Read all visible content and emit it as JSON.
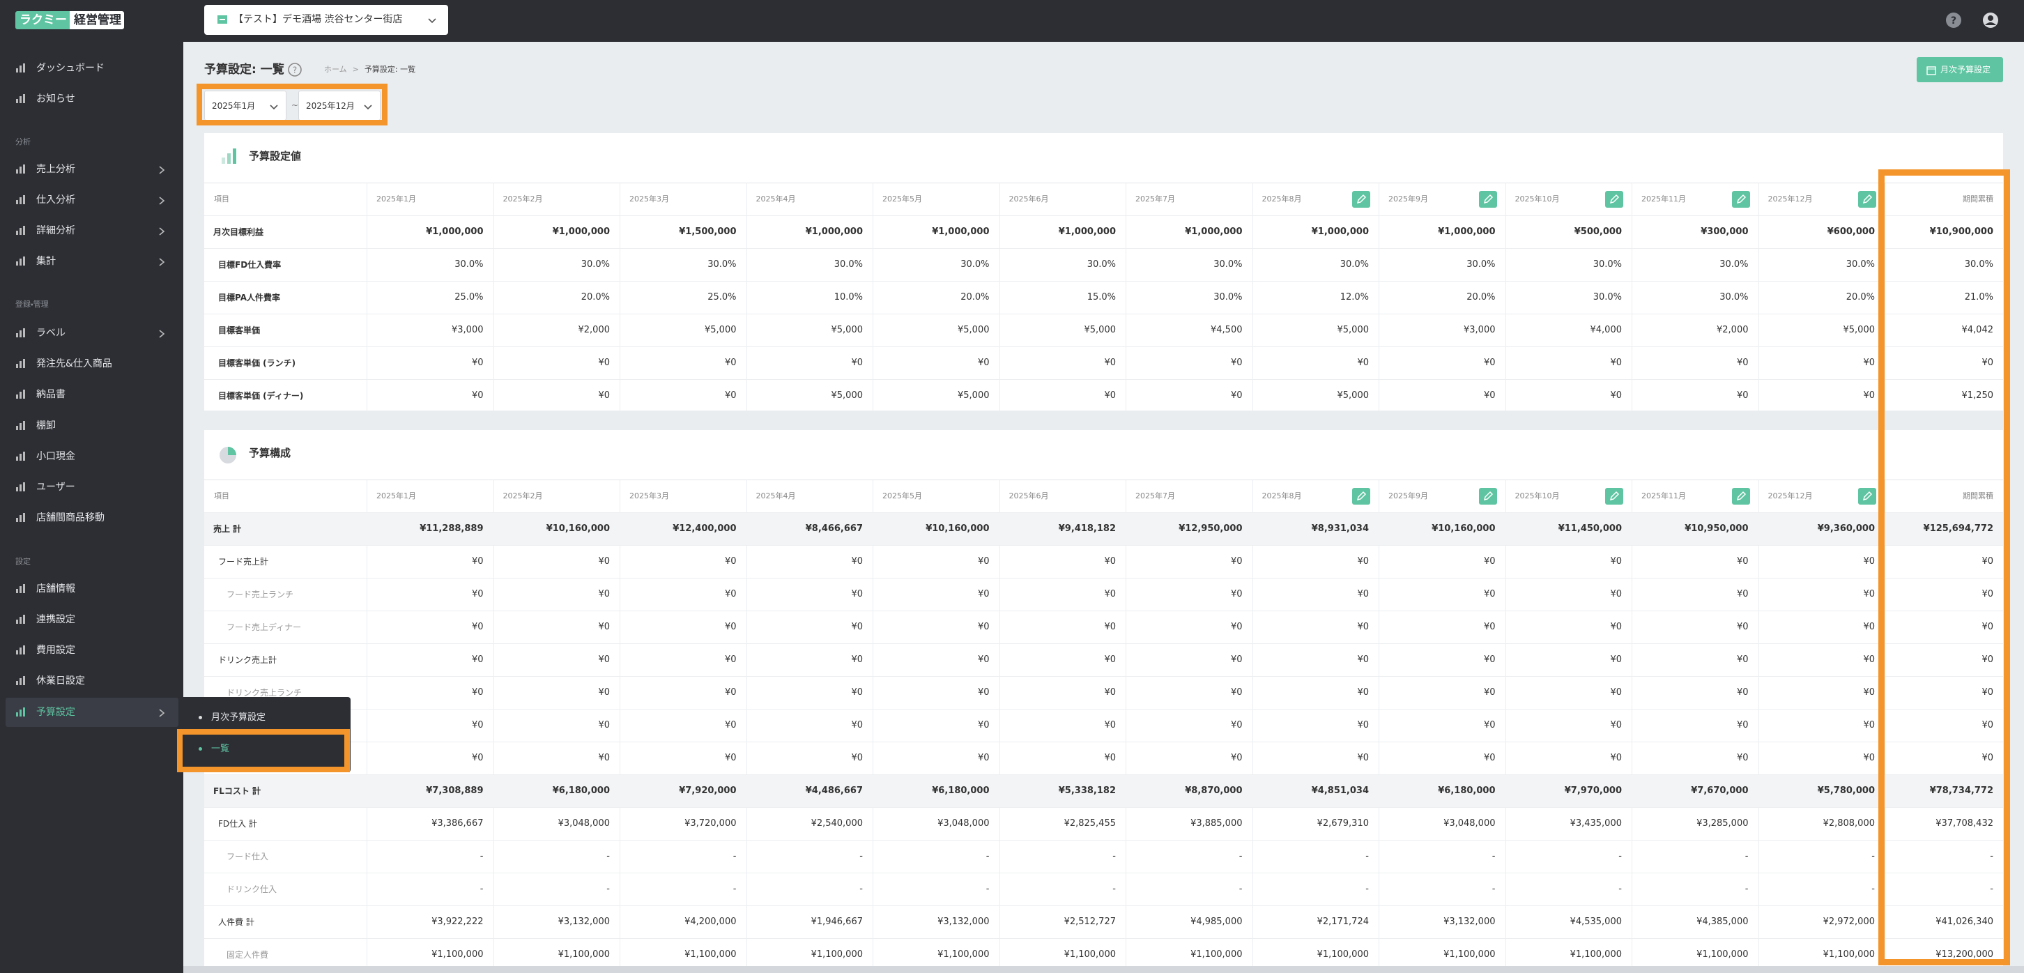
{
  "header": {
    "logo": "ラクミー",
    "app_name": "経営管理",
    "store": "【テスト】デモ酒場 渋谷センター街店"
  },
  "sidebar": {
    "groups": [
      {
        "items": [
          "ダッシュボード",
          "お知らせ"
        ]
      },
      {
        "heading": "分析",
        "items": [
          "売上分析",
          "仕入分析",
          "詳細分析",
          "集計"
        ]
      },
      {
        "heading": "登録・管理",
        "items": [
          "ラベル",
          "発注先&仕入商品",
          "納品書",
          "棚卸",
          "小口現金",
          "ユーザー",
          "店舗間商品移動"
        ]
      },
      {
        "heading": "設定",
        "items": [
          "店舗情報",
          "連携設定",
          "費用設定",
          "休業日設定",
          "予算設定"
        ]
      }
    ]
  },
  "submenu": [
    "月次予算設定",
    "一覧"
  ],
  "page": {
    "title": "予算設定: 一覧",
    "breadcrumb": [
      "ホーム",
      ">",
      "予算設定: 一覧"
    ],
    "button": "月次予算設定",
    "range": {
      "from": "2025年1月",
      "separator": "~",
      "to": "2025年12月"
    }
  },
  "tables": [
    {
      "title": "予算設定値",
      "columns": [
        "項目",
        "2025年1月",
        "2025年2月",
        "2025年3月",
        "2025年4月",
        "2025年5月",
        "2025年6月",
        "2025年7月",
        "2025年8月",
        "2025年9月",
        "2025年10月",
        "2025年11月",
        "2025年12月",
        "期間累積"
      ],
      "rows": [
        {
          "label": "月次目標利益",
          "values": [
            "¥1,000,000",
            "¥1,000,000",
            "¥1,500,000",
            "¥1,000,000",
            "¥1,000,000",
            "¥1,000,000",
            "¥1,000,000",
            "¥1,000,000",
            "¥1,000,000",
            "¥500,000",
            "¥300,000",
            "¥600,000",
            "¥10,900,000"
          ]
        },
        {
          "label": "目標FD仕入費率",
          "values": [
            "30.0%",
            "30.0%",
            "30.0%",
            "30.0%",
            "30.0%",
            "30.0%",
            "30.0%",
            "30.0%",
            "30.0%",
            "30.0%",
            "30.0%",
            "30.0%",
            "30.0%"
          ]
        },
        {
          "label": "目標PA人件費率",
          "values": [
            "25.0%",
            "20.0%",
            "25.0%",
            "10.0%",
            "20.0%",
            "15.0%",
            "30.0%",
            "12.0%",
            "20.0%",
            "30.0%",
            "30.0%",
            "20.0%",
            "21.0%"
          ]
        },
        {
          "label": "目標客単価",
          "values": [
            "¥3,000",
            "¥2,000",
            "¥5,000",
            "¥5,000",
            "¥5,000",
            "¥5,000",
            "¥4,500",
            "¥5,000",
            "¥3,000",
            "¥4,000",
            "¥2,000",
            "¥5,000",
            "¥4,042"
          ]
        },
        {
          "label": "目標客単価 (ランチ)",
          "values": [
            "¥0",
            "¥0",
            "¥0",
            "¥0",
            "¥0",
            "¥0",
            "¥0",
            "¥0",
            "¥0",
            "¥0",
            "¥0",
            "¥0",
            "¥0"
          ]
        },
        {
          "label": "目標客単価 (ディナー)",
          "values": [
            "¥0",
            "¥0",
            "¥0",
            "¥5,000",
            "¥5,000",
            "¥0",
            "¥0",
            "¥5,000",
            "¥0",
            "¥0",
            "¥0",
            "¥0",
            "¥1,250"
          ]
        }
      ]
    },
    {
      "title": "予算構成",
      "columns": [
        "項目",
        "2025年1月",
        "2025年2月",
        "2025年3月",
        "2025年4月",
        "2025年5月",
        "2025年6月",
        "2025年7月",
        "2025年8月",
        "2025年9月",
        "2025年10月",
        "2025年11月",
        "2025年12月",
        "期間累積"
      ],
      "rows": [
        {
          "label": "売上 計",
          "values": [
            "¥11,288,889",
            "¥10,160,000",
            "¥12,400,000",
            "¥8,466,667",
            "¥10,160,000",
            "¥9,418,182",
            "¥12,950,000",
            "¥8,931,034",
            "¥10,160,000",
            "¥11,450,000",
            "¥10,950,000",
            "¥9,360,000",
            "¥125,694,772"
          ]
        },
        {
          "label": "フード売上計",
          "values": [
            "¥0",
            "¥0",
            "¥0",
            "¥0",
            "¥0",
            "¥0",
            "¥0",
            "¥0",
            "¥0",
            "¥0",
            "¥0",
            "¥0",
            "¥0"
          ]
        },
        {
          "label": "フード売上ランチ",
          "values": [
            "¥0",
            "¥0",
            "¥0",
            "¥0",
            "¥0",
            "¥0",
            "¥0",
            "¥0",
            "¥0",
            "¥0",
            "¥0",
            "¥0",
            "¥0"
          ]
        },
        {
          "label": "フード売上ディナー",
          "values": [
            "¥0",
            "¥0",
            "¥0",
            "¥0",
            "¥0",
            "¥0",
            "¥0",
            "¥0",
            "¥0",
            "¥0",
            "¥0",
            "¥0",
            "¥0"
          ]
        },
        {
          "label": "ドリンク売上計",
          "values": [
            "¥0",
            "¥0",
            "¥0",
            "¥0",
            "¥0",
            "¥0",
            "¥0",
            "¥0",
            "¥0",
            "¥0",
            "¥0",
            "¥0",
            "¥0"
          ]
        },
        {
          "label": "ドリンク売上ランチ",
          "values": [
            "¥0",
            "¥0",
            "¥0",
            "¥0",
            "¥0",
            "¥0",
            "¥0",
            "¥0",
            "¥0",
            "¥0",
            "¥0",
            "¥0",
            "¥0"
          ]
        },
        {
          "values": [
            "¥0",
            "¥0",
            "¥0",
            "¥0",
            "¥0",
            "¥0",
            "¥0",
            "¥0",
            "¥0",
            "¥0",
            "¥0",
            "¥0",
            "¥0"
          ]
        },
        {
          "values": [
            "¥0",
            "¥0",
            "¥0",
            "¥0",
            "¥0",
            "¥0",
            "¥0",
            "¥0",
            "¥0",
            "¥0",
            "¥0",
            "¥0",
            "¥0"
          ]
        },
        {
          "label": "FLコスト 計",
          "values": [
            "¥7,308,889",
            "¥6,180,000",
            "¥7,920,000",
            "¥4,486,667",
            "¥6,180,000",
            "¥5,338,182",
            "¥8,870,000",
            "¥4,851,034",
            "¥6,180,000",
            "¥7,970,000",
            "¥7,670,000",
            "¥5,780,000",
            "¥78,734,772"
          ]
        },
        {
          "label": "FD仕入 計",
          "values": [
            "¥3,386,667",
            "¥3,048,000",
            "¥3,720,000",
            "¥2,540,000",
            "¥3,048,000",
            "¥2,825,455",
            "¥3,885,000",
            "¥2,679,310",
            "¥3,048,000",
            "¥3,435,000",
            "¥3,285,000",
            "¥2,808,000",
            "¥37,708,432"
          ]
        },
        {
          "label": "フード仕入",
          "values": [
            "-",
            "-",
            "-",
            "-",
            "-",
            "-",
            "-",
            "-",
            "-",
            "-",
            "-",
            "-",
            "-"
          ]
        },
        {
          "label": "ドリンク仕入",
          "values": [
            "-",
            "-",
            "-",
            "-",
            "-",
            "-",
            "-",
            "-",
            "-",
            "-",
            "-",
            "-",
            "-"
          ]
        },
        {
          "label": "人件費 計",
          "values": [
            "¥3,922,222",
            "¥3,132,000",
            "¥4,200,000",
            "¥1,946,667",
            "¥3,132,000",
            "¥2,512,727",
            "¥4,985,000",
            "¥2,171,724",
            "¥3,132,000",
            "¥4,535,000",
            "¥4,385,000",
            "¥2,972,000",
            "¥41,026,340"
          ]
        },
        {
          "label": "固定人件費",
          "values": [
            "¥1,100,000",
            "¥1,100,000",
            "¥1,100,000",
            "¥1,100,000",
            "¥1,100,000",
            "¥1,100,000",
            "¥1,100,000",
            "¥1,100,000",
            "¥1,100,000",
            "¥1,100,000",
            "¥1,100,000",
            "¥1,100,000",
            "¥13,200,000"
          ]
        }
      ]
    }
  ]
}
